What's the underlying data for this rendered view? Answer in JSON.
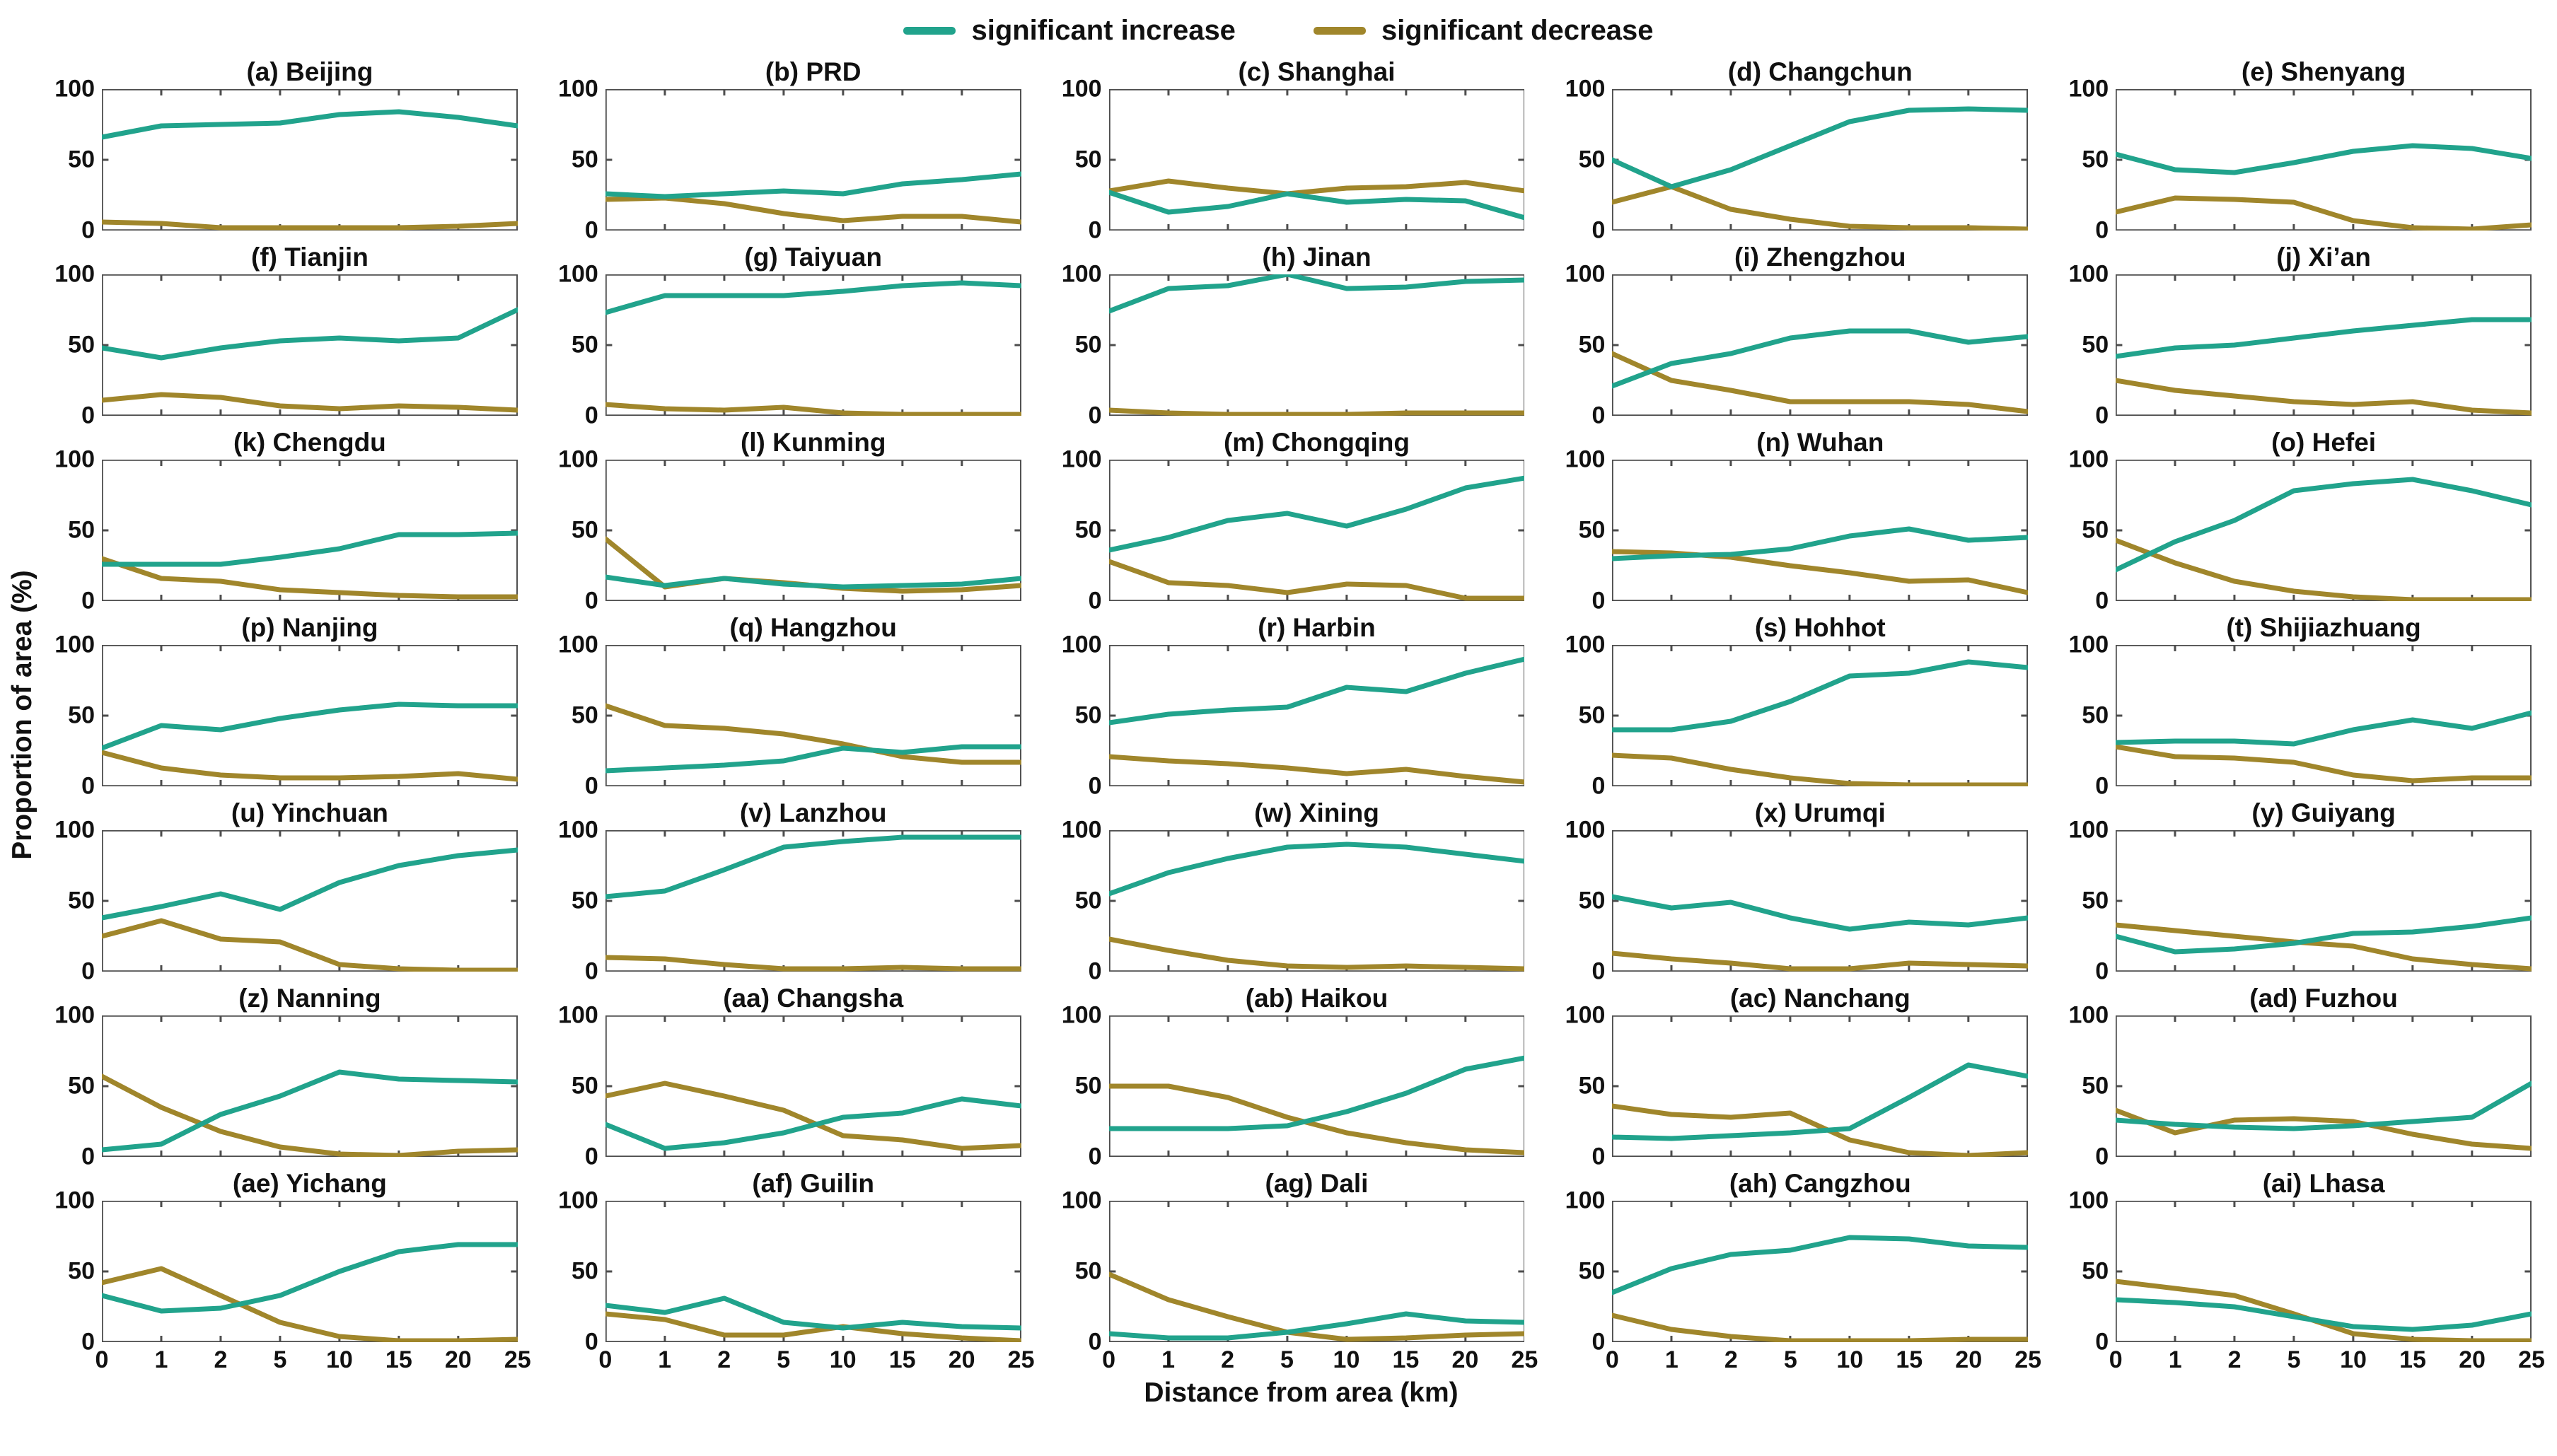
{
  "legend": {
    "items": [
      {
        "label": "significant increase",
        "color": "#21A38C"
      },
      {
        "label": "significant decrease",
        "color": "#A0862B"
      }
    ]
  },
  "chart_data": {
    "type": "line",
    "title": "",
    "x_label": "Distance from area (km)",
    "y_label": "Proportion of area (%)",
    "x": [
      0,
      1,
      2,
      5,
      10,
      15,
      20,
      25
    ],
    "x_tick_labels": [
      "0",
      "1",
      "2",
      "5",
      "10",
      "15",
      "20",
      "25"
    ],
    "y_tick_labels": [
      "100",
      "50",
      "0"
    ],
    "ylim": [
      0,
      100
    ],
    "grid": false,
    "legend_position": "top-center",
    "axis_color": "#4d4d4d",
    "series_legend": [
      {
        "name": "significant increase",
        "color": "#21A38C"
      },
      {
        "name": "significant decrease",
        "color": "#A0862B"
      }
    ],
    "charts": [
      {
        "label": "(a) Beijing",
        "increase": [
          66,
          74,
          75,
          76,
          82,
          84,
          80,
          74
        ],
        "decrease": [
          6,
          5,
          2,
          2,
          2,
          2,
          3,
          5
        ]
      },
      {
        "label": "(b) PRD",
        "increase": [
          26,
          24,
          26,
          28,
          26,
          33,
          36,
          40
        ],
        "decrease": [
          22,
          23,
          19,
          12,
          7,
          10,
          10,
          6
        ]
      },
      {
        "label": "(c) Shanghai",
        "increase": [
          27,
          13,
          17,
          26,
          20,
          22,
          21,
          9
        ],
        "decrease": [
          28,
          35,
          30,
          26,
          30,
          31,
          34,
          28
        ]
      },
      {
        "label": "(d) Changchun",
        "increase": [
          50,
          31,
          43,
          60,
          77,
          85,
          86,
          85
        ],
        "decrease": [
          20,
          31,
          15,
          8,
          3,
          2,
          2,
          1
        ]
      },
      {
        "label": "(e) Shenyang",
        "increase": [
          54,
          43,
          41,
          48,
          56,
          60,
          58,
          51
        ],
        "decrease": [
          13,
          23,
          22,
          20,
          7,
          2,
          1,
          4
        ]
      },
      {
        "label": "(f) Tianjin",
        "increase": [
          48,
          41,
          48,
          53,
          55,
          53,
          55,
          75
        ],
        "decrease": [
          11,
          15,
          13,
          7,
          5,
          7,
          6,
          4
        ]
      },
      {
        "label": "(g) Taiyuan",
        "increase": [
          73,
          85,
          85,
          85,
          88,
          92,
          94,
          92
        ],
        "decrease": [
          8,
          5,
          4,
          6,
          2,
          1,
          1,
          1
        ]
      },
      {
        "label": "(h) Jinan",
        "increase": [
          74,
          90,
          92,
          100,
          90,
          91,
          95,
          96
        ],
        "decrease": [
          4,
          2,
          1,
          1,
          1,
          2,
          2,
          2
        ]
      },
      {
        "label": "(i) Zhengzhou",
        "increase": [
          21,
          37,
          44,
          55,
          60,
          60,
          52,
          56
        ],
        "decrease": [
          44,
          25,
          18,
          10,
          10,
          10,
          8,
          3
        ]
      },
      {
        "label": "(j) Xi’an",
        "increase": [
          42,
          48,
          50,
          55,
          60,
          64,
          68,
          68
        ],
        "decrease": [
          25,
          18,
          14,
          10,
          8,
          10,
          4,
          2
        ]
      },
      {
        "label": "(k) Chengdu",
        "increase": [
          26,
          26,
          26,
          31,
          37,
          47,
          47,
          48
        ],
        "decrease": [
          30,
          16,
          14,
          8,
          6,
          4,
          3,
          3
        ]
      },
      {
        "label": "(l) Kunming",
        "increase": [
          17,
          11,
          16,
          12,
          10,
          11,
          12,
          16
        ],
        "decrease": [
          44,
          10,
          16,
          13,
          9,
          7,
          8,
          11
        ]
      },
      {
        "label": "(m) Chongqing",
        "increase": [
          36,
          45,
          57,
          62,
          53,
          65,
          80,
          87
        ],
        "decrease": [
          28,
          13,
          11,
          6,
          12,
          11,
          2,
          2
        ]
      },
      {
        "label": "(n) Wuhan",
        "increase": [
          30,
          32,
          33,
          37,
          46,
          51,
          43,
          45
        ],
        "decrease": [
          35,
          34,
          31,
          25,
          20,
          14,
          15,
          6
        ]
      },
      {
        "label": "(o) Hefei",
        "increase": [
          22,
          42,
          57,
          78,
          83,
          86,
          78,
          68
        ],
        "decrease": [
          43,
          27,
          14,
          7,
          3,
          1,
          1,
          1
        ]
      },
      {
        "label": "(p) Nanjing",
        "increase": [
          27,
          43,
          40,
          48,
          54,
          58,
          57,
          57
        ],
        "decrease": [
          24,
          13,
          8,
          6,
          6,
          7,
          9,
          5
        ]
      },
      {
        "label": "(q) Hangzhou",
        "increase": [
          11,
          13,
          15,
          18,
          27,
          24,
          28,
          28
        ],
        "decrease": [
          57,
          43,
          41,
          37,
          30,
          21,
          17,
          17
        ]
      },
      {
        "label": "(r) Harbin",
        "increase": [
          45,
          51,
          54,
          56,
          70,
          67,
          80,
          90
        ],
        "decrease": [
          21,
          18,
          16,
          13,
          9,
          12,
          7,
          3
        ]
      },
      {
        "label": "(s) Hohhot",
        "increase": [
          40,
          40,
          46,
          60,
          78,
          80,
          88,
          84
        ],
        "decrease": [
          22,
          20,
          12,
          6,
          2,
          1,
          1,
          1
        ]
      },
      {
        "label": "(t) Shijiazhuang",
        "increase": [
          31,
          32,
          32,
          30,
          40,
          47,
          41,
          52
        ],
        "decrease": [
          28,
          21,
          20,
          17,
          8,
          4,
          6,
          6
        ]
      },
      {
        "label": "(u) Yinchuan",
        "increase": [
          38,
          46,
          55,
          44,
          63,
          75,
          82,
          86
        ],
        "decrease": [
          25,
          36,
          23,
          21,
          5,
          2,
          1,
          1
        ]
      },
      {
        "label": "(v) Lanzhou",
        "increase": [
          53,
          57,
          72,
          88,
          92,
          95,
          95,
          95
        ],
        "decrease": [
          10,
          9,
          5,
          2,
          2,
          3,
          2,
          2
        ]
      },
      {
        "label": "(w) Xining",
        "increase": [
          55,
          70,
          80,
          88,
          90,
          88,
          83,
          78
        ],
        "decrease": [
          23,
          15,
          8,
          4,
          3,
          4,
          3,
          2
        ]
      },
      {
        "label": "(x) Urumqi",
        "increase": [
          53,
          45,
          49,
          38,
          30,
          35,
          33,
          38
        ],
        "decrease": [
          13,
          9,
          6,
          2,
          2,
          6,
          5,
          4
        ]
      },
      {
        "label": "(y) Guiyang",
        "increase": [
          25,
          14,
          16,
          20,
          27,
          28,
          32,
          38
        ],
        "decrease": [
          33,
          29,
          25,
          21,
          18,
          9,
          5,
          2
        ]
      },
      {
        "label": "(z) Nanning",
        "increase": [
          5,
          9,
          30,
          43,
          60,
          55,
          54,
          53
        ],
        "decrease": [
          57,
          35,
          18,
          7,
          2,
          1,
          4,
          5
        ]
      },
      {
        "label": "(aa) Changsha",
        "increase": [
          23,
          6,
          10,
          17,
          28,
          31,
          41,
          36
        ],
        "decrease": [
          43,
          52,
          43,
          33,
          15,
          12,
          6,
          8
        ]
      },
      {
        "label": "(ab) Haikou",
        "increase": [
          20,
          20,
          20,
          22,
          32,
          45,
          62,
          70
        ],
        "decrease": [
          50,
          50,
          42,
          28,
          17,
          10,
          5,
          3
        ]
      },
      {
        "label": "(ac) Nanchang",
        "increase": [
          14,
          13,
          15,
          17,
          20,
          42,
          65,
          57
        ],
        "decrease": [
          36,
          30,
          28,
          31,
          12,
          3,
          1,
          3
        ]
      },
      {
        "label": "(ad) Fuzhou",
        "increase": [
          26,
          23,
          21,
          20,
          22,
          25,
          28,
          52
        ],
        "decrease": [
          33,
          17,
          26,
          27,
          25,
          16,
          9,
          6
        ]
      },
      {
        "label": "(ae) Yichang",
        "increase": [
          33,
          22,
          24,
          33,
          50,
          64,
          69,
          69
        ],
        "decrease": [
          42,
          52,
          33,
          14,
          4,
          1,
          1,
          2
        ]
      },
      {
        "label": "(af) Guilin",
        "increase": [
          26,
          21,
          31,
          14,
          10,
          14,
          11,
          10
        ],
        "decrease": [
          20,
          16,
          5,
          5,
          11,
          6,
          3,
          1
        ]
      },
      {
        "label": "(ag) Dali",
        "increase": [
          6,
          3,
          3,
          7,
          13,
          20,
          15,
          14
        ],
        "decrease": [
          48,
          30,
          18,
          7,
          2,
          3,
          5,
          6
        ]
      },
      {
        "label": "(ah) Cangzhou",
        "increase": [
          35,
          52,
          62,
          65,
          74,
          73,
          68,
          67
        ],
        "decrease": [
          19,
          9,
          4,
          1,
          1,
          1,
          2,
          2
        ]
      },
      {
        "label": "(ai) Lhasa",
        "increase": [
          30,
          28,
          25,
          18,
          11,
          9,
          12,
          20
        ],
        "decrease": [
          43,
          38,
          33,
          20,
          6,
          2,
          1,
          1
        ]
      }
    ]
  }
}
